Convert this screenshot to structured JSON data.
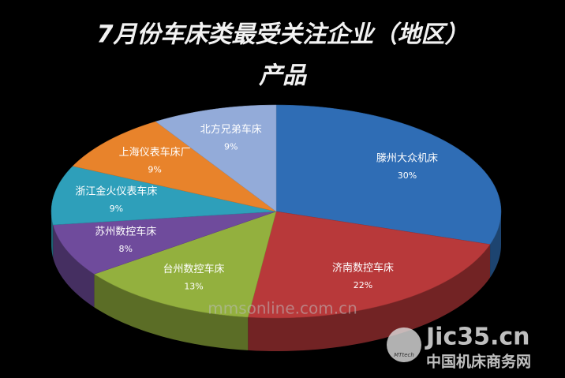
{
  "chart_data": {
    "type": "pie",
    "title": [
      "7月份车床类最受关注企业（地区）",
      "产品"
    ],
    "categories": [
      "滕州大众机床",
      "济南数控车床",
      "台州数控车床",
      "苏州数控车床",
      "浙江金火仪表车床",
      "上海仪表车床厂",
      "北方兄弟车床"
    ],
    "values": [
      30,
      22,
      13,
      8,
      9,
      9,
      9
    ],
    "value_labels": [
      "30%",
      "22%",
      "13%",
      "8%",
      "9%",
      "9%",
      "9%"
    ],
    "colors": [
      "#2f6db5",
      "#b8393a",
      "#93b03e",
      "#6f4b9c",
      "#2e9fba",
      "#e8832b",
      "#93abd9"
    ],
    "watermarks": [
      "mmsonline.com.cn",
      "Jic35.cn",
      "中国机床商务网",
      "MTtech"
    ]
  }
}
